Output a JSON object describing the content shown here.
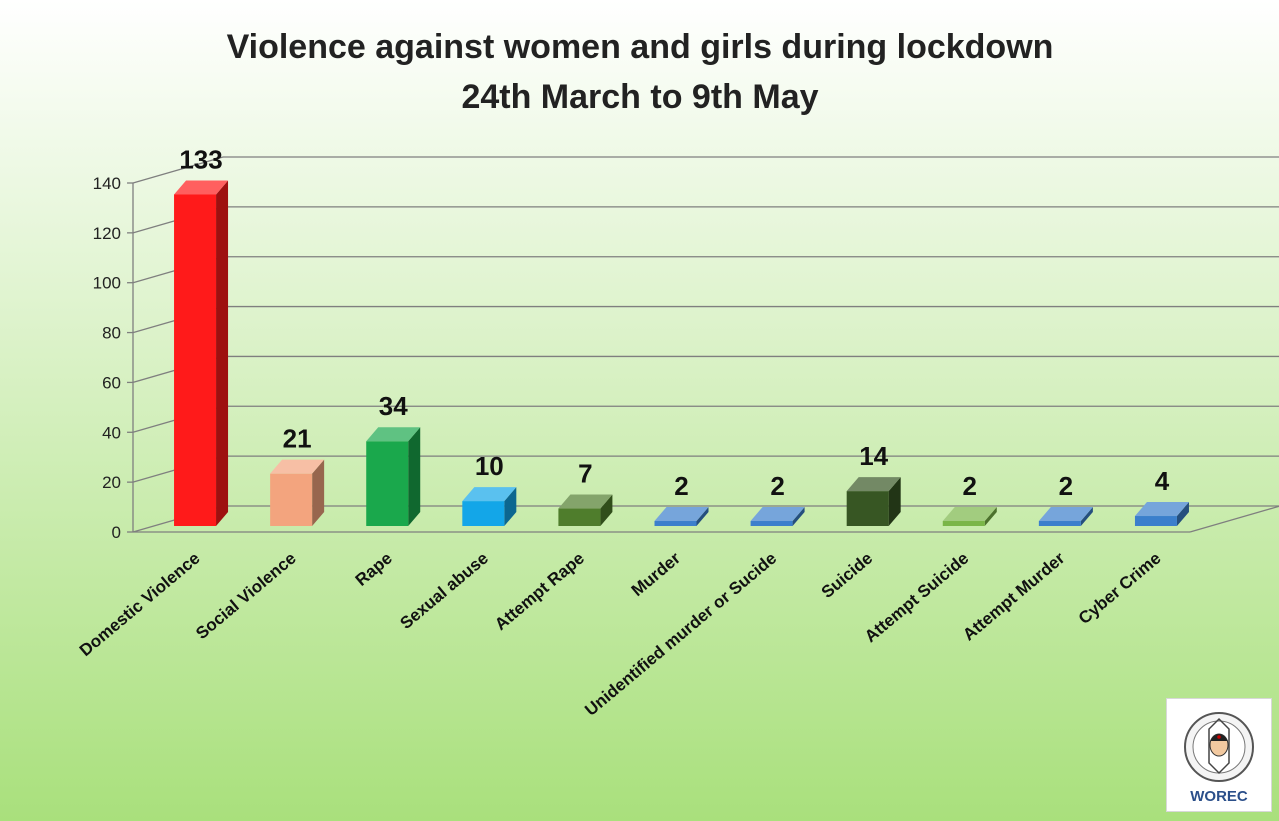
{
  "chart_data": {
    "type": "bar",
    "title": "Violence against women and girls during lockdown",
    "subtitle": "24th March to 9th May",
    "categories": [
      "Domestic Violence",
      "Social Violence",
      "Rape",
      "Sexual abuse",
      "Attempt Rape",
      "Murder",
      "Unidentified murder or Sucide",
      "Suicide",
      "Attempt Suicide",
      "Attempt Murder",
      "Cyber Crime"
    ],
    "values": [
      133,
      21,
      34,
      10,
      7,
      2,
      2,
      14,
      2,
      2,
      4
    ],
    "bar_colors": [
      "#ff1a1a",
      "#f3a47e",
      "#1aa84c",
      "#13a6e8",
      "#4f7d2c",
      "#3b7fcc",
      "#3b7fcc",
      "#375623",
      "#7ab648",
      "#3b7fcc",
      "#3b7fcc"
    ],
    "ylim": [
      0,
      140
    ],
    "yticks": [
      0,
      20,
      40,
      60,
      80,
      100,
      120,
      140
    ],
    "xlabel": "",
    "ylabel": "",
    "grid": true,
    "style": "3d-column"
  },
  "logo": {
    "text": "WOREC"
  },
  "colors": {
    "background_top": "#ffffff",
    "background_bottom": "#a9e07c",
    "gridline": "#7f7f7f"
  }
}
